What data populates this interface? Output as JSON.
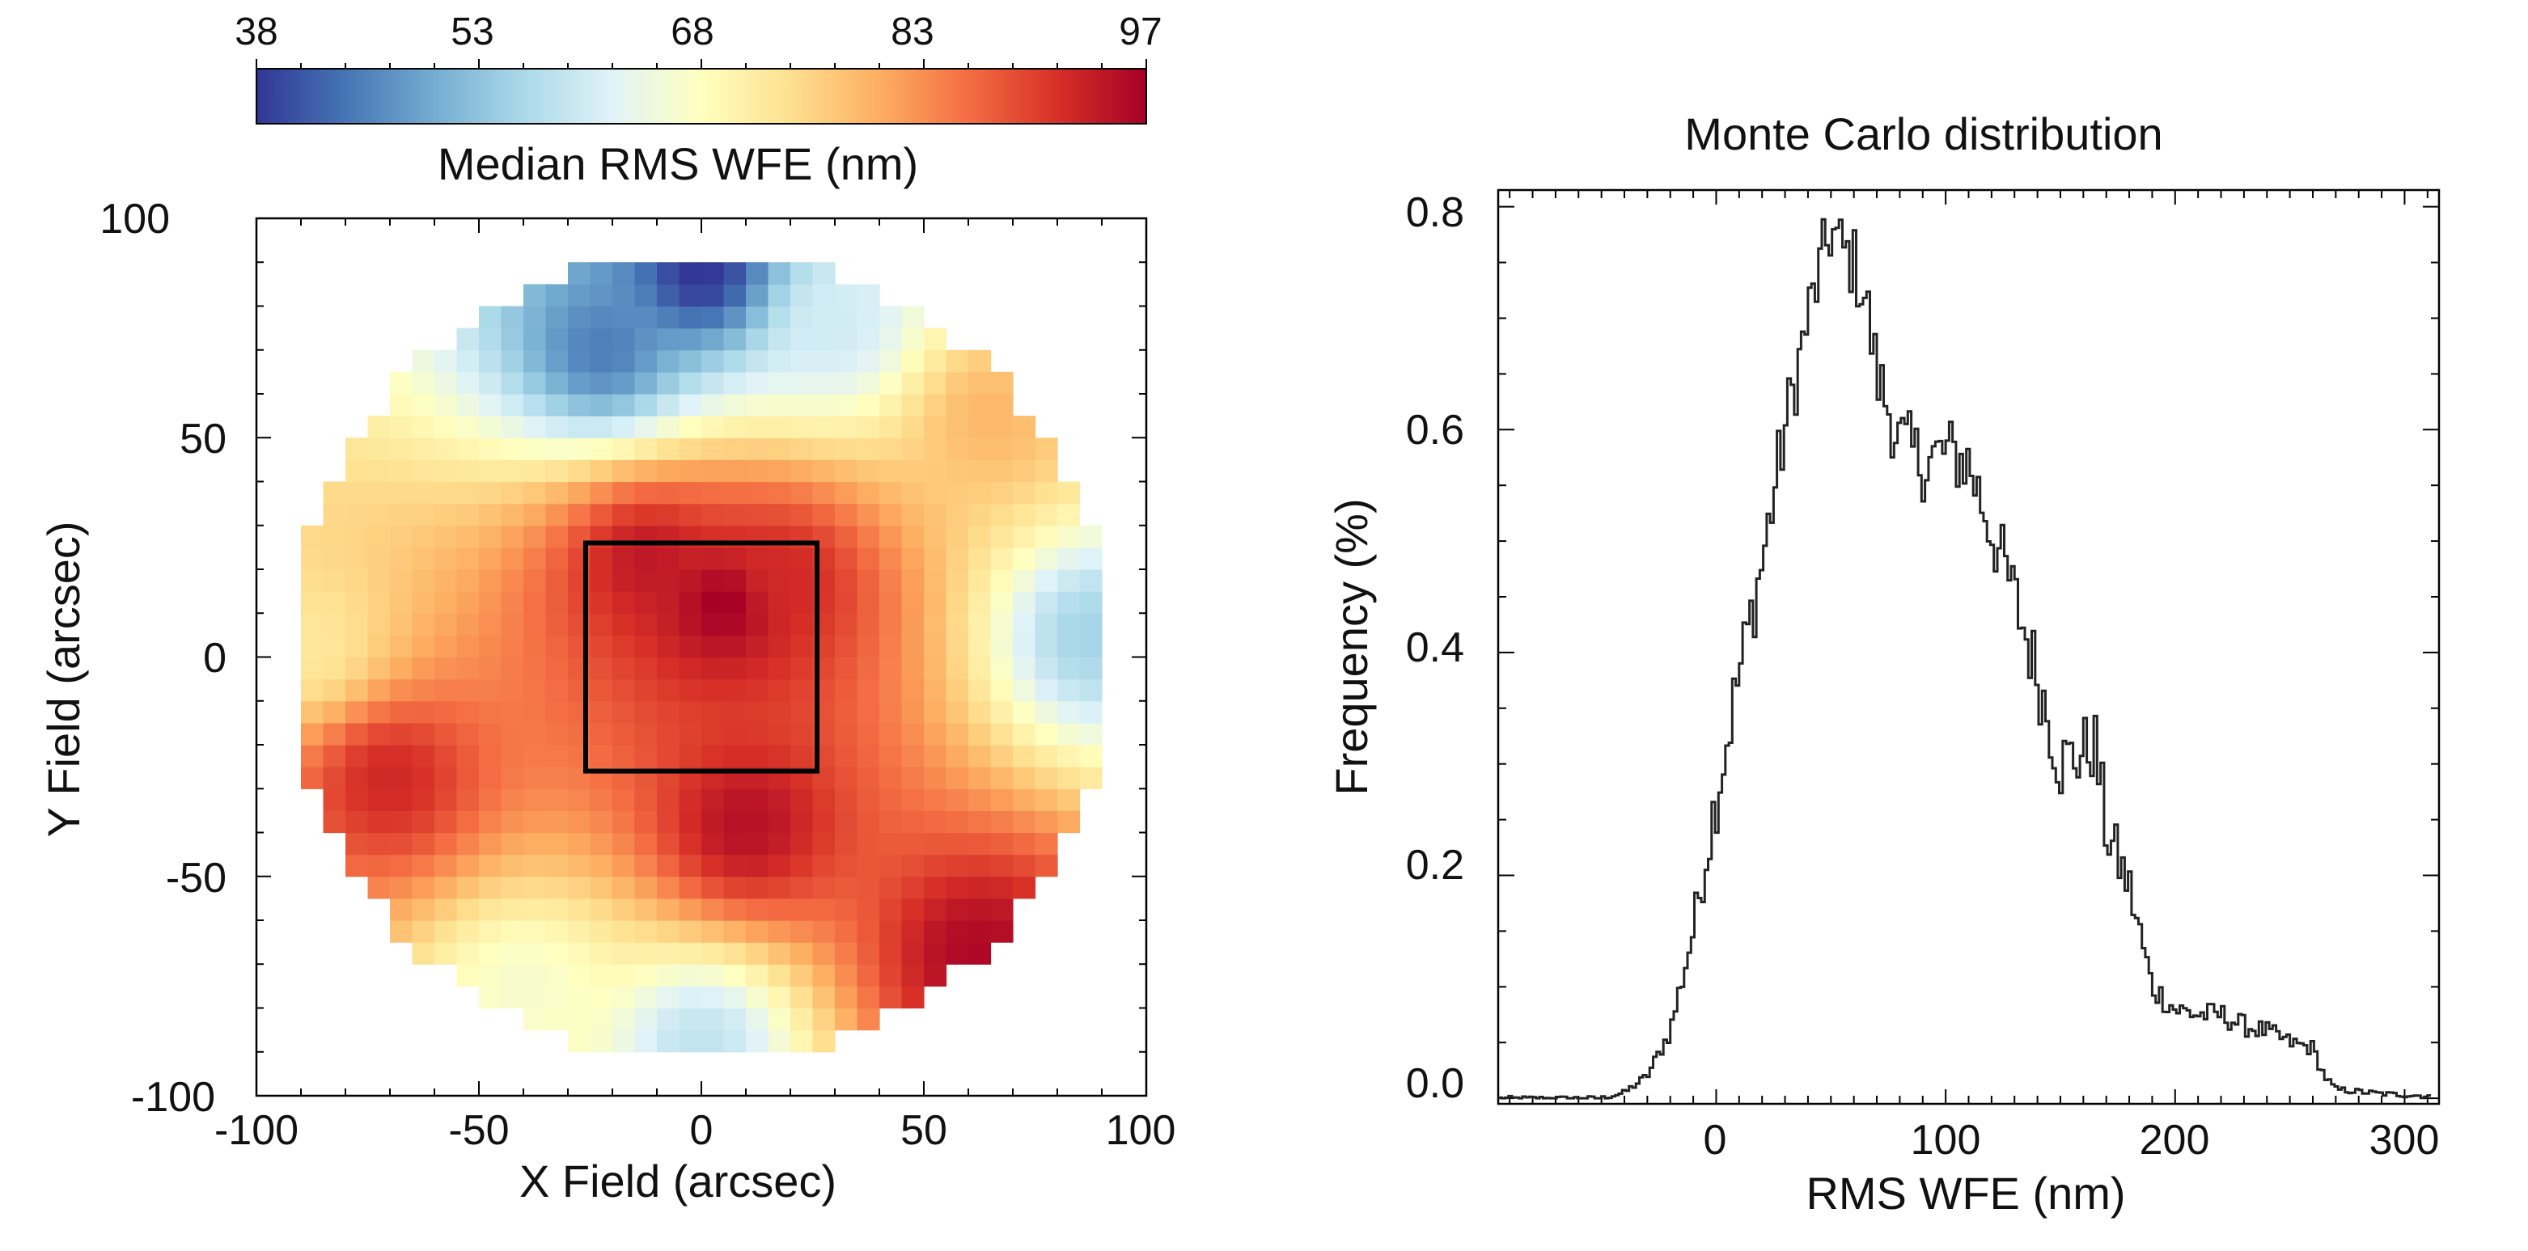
{
  "chart_data": [
    {
      "type": "heatmap",
      "colorbar": {
        "label": "Median RMS WFE (nm)",
        "ticks": [
          "38",
          "53",
          "68",
          "83",
          "97"
        ],
        "range": [
          38,
          97
        ],
        "colors": [
          "#313695",
          "#4575b4",
          "#74add1",
          "#abd9e9",
          "#e0f3f8",
          "#ffffbf",
          "#fee090",
          "#fdae61",
          "#f46d43",
          "#d73027",
          "#a50026"
        ]
      },
      "xlabel": "X Field (arcsec)",
      "ylabel": "Y Field (arcsec)",
      "xticks": [
        "-100",
        "-50",
        "0",
        "50",
        "100"
      ],
      "yticks": [
        "100",
        "50",
        "0",
        "-50",
        "-100"
      ],
      "xlim": [
        -100,
        100
      ],
      "ylim": [
        -100,
        100
      ],
      "field_radius": 92,
      "grid_cells": 40,
      "annotation_box": {
        "x": [
          -26,
          26
        ],
        "y": [
          -26,
          26
        ]
      },
      "field_features": [
        {
          "x": 0,
          "y": 88,
          "value": 38
        },
        {
          "x": -22,
          "y": 70,
          "value": 45
        },
        {
          "x": 30,
          "y": 75,
          "value": 60
        },
        {
          "x": 5,
          "y": 12,
          "value": 97
        },
        {
          "x": -12,
          "y": 22,
          "value": 94
        },
        {
          "x": 18,
          "y": 18,
          "value": 92
        },
        {
          "x": 10,
          "y": -38,
          "value": 95
        },
        {
          "x": -70,
          "y": -28,
          "value": 92
        },
        {
          "x": 62,
          "y": -68,
          "value": 96
        },
        {
          "x": -40,
          "y": -75,
          "value": 66
        },
        {
          "x": 88,
          "y": 5,
          "value": 55
        },
        {
          "x": -88,
          "y": 2,
          "value": 72
        },
        {
          "x": 0,
          "y": -88,
          "value": 58
        },
        {
          "x": 65,
          "y": 55,
          "value": 78
        }
      ]
    },
    {
      "type": "line",
      "title": "Monte Carlo distribution",
      "xlabel": "RMS WFE (nm)",
      "ylabel": "Frequency (%)",
      "xticks": [
        "0",
        "100",
        "200",
        "300"
      ],
      "yticks": [
        "0.0",
        "0.2",
        "0.4",
        "0.6",
        "0.8"
      ],
      "xlim": [
        -95,
        315
      ],
      "ylim": [
        -0.005,
        0.815
      ],
      "series": [
        {
          "name": "histogram",
          "x": [
            -95,
            -50,
            -40,
            -30,
            -20,
            -10,
            0,
            10,
            20,
            30,
            40,
            45,
            50,
            55,
            60,
            65,
            70,
            80,
            90,
            100,
            110,
            120,
            130,
            140,
            150,
            160,
            165,
            170,
            180,
            190,
            200,
            210,
            220,
            230,
            240,
            250,
            260,
            265,
            270,
            290,
            310
          ],
          "values": [
            0.0,
            0.0,
            0.005,
            0.02,
            0.06,
            0.15,
            0.27,
            0.38,
            0.48,
            0.6,
            0.7,
            0.74,
            0.78,
            0.76,
            0.75,
            0.72,
            0.65,
            0.59,
            0.57,
            0.58,
            0.57,
            0.51,
            0.45,
            0.38,
            0.3,
            0.31,
            0.32,
            0.24,
            0.19,
            0.1,
            0.08,
            0.075,
            0.075,
            0.065,
            0.06,
            0.05,
            0.045,
            0.02,
            0.008,
            0.004,
            0.002
          ]
        }
      ]
    }
  ]
}
